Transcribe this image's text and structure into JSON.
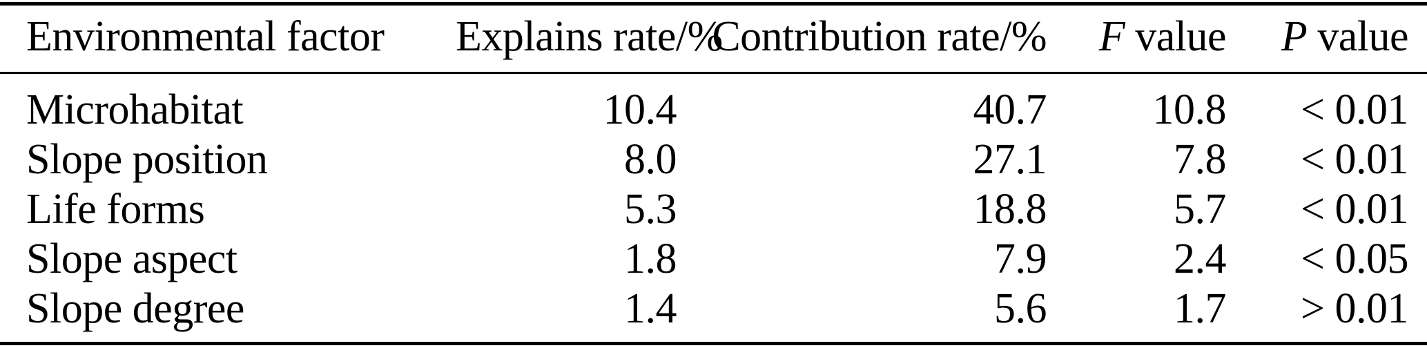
{
  "page": {
    "background_color": "#ffffff",
    "text_color": "#000000",
    "rule_color": "#000000"
  },
  "table": {
    "headers": [
      {
        "id": "environmental-factor",
        "italic_prefix": "",
        "label": "Environmental factor",
        "align": "left"
      },
      {
        "id": "explains-rate",
        "italic_prefix": "",
        "label": "Explains rate/%",
        "align": "right"
      },
      {
        "id": "contribution-rate",
        "italic_prefix": "",
        "label": "Contribution rate/%",
        "align": "right"
      },
      {
        "id": "f-value",
        "italic_prefix": "F",
        "label": " value",
        "align": "right"
      },
      {
        "id": "p-value",
        "italic_prefix": "P",
        "label": " value",
        "align": "right"
      }
    ],
    "rows": [
      [
        "Microhabitat",
        "10.4",
        "40.7",
        "10.8",
        "< 0.01"
      ],
      [
        "Slope position",
        "8.0",
        "27.1",
        "7.8",
        "< 0.01"
      ],
      [
        "Life forms",
        "5.3",
        "18.8",
        "5.7",
        "< 0.01"
      ],
      [
        "Slope aspect",
        "1.8",
        "7.9",
        "2.4",
        "< 0.05"
      ],
      [
        "Slope degree",
        "1.4",
        "5.6",
        "1.7",
        "> 0.01"
      ]
    ]
  },
  "chart_data": {
    "type": "table",
    "columns": [
      "Environmental factor",
      "Explains rate/%",
      "Contribution rate/%",
      "F value",
      "P value"
    ],
    "rows": [
      {
        "factor": "Microhabitat",
        "explains_rate_pct": 10.4,
        "contribution_rate_pct": 40.7,
        "f_value": 10.8,
        "p_value": "< 0.01"
      },
      {
        "factor": "Slope position",
        "explains_rate_pct": 8.0,
        "contribution_rate_pct": 27.1,
        "f_value": 7.8,
        "p_value": "< 0.01"
      },
      {
        "factor": "Life forms",
        "explains_rate_pct": 5.3,
        "contribution_rate_pct": 18.8,
        "f_value": 5.7,
        "p_value": "< 0.01"
      },
      {
        "factor": "Slope aspect",
        "explains_rate_pct": 1.8,
        "contribution_rate_pct": 7.9,
        "f_value": 2.4,
        "p_value": "< 0.05"
      },
      {
        "factor": "Slope degree",
        "explains_rate_pct": 1.4,
        "contribution_rate_pct": 5.6,
        "f_value": 1.7,
        "p_value": "> 0.01"
      }
    ]
  }
}
